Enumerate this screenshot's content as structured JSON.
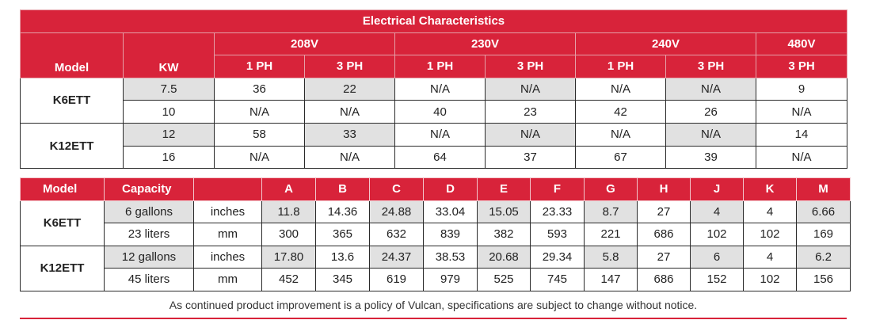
{
  "electrical": {
    "title": "Electrical Characteristics",
    "col_model": "Model",
    "col_kw": "KW",
    "voltages": [
      "208V",
      "230V",
      "240V",
      "480V"
    ],
    "phases": [
      "1 PH",
      "3 PH",
      "1 PH",
      "3 PH",
      "1 PH",
      "3 PH",
      "3 PH"
    ],
    "models": [
      "K6ETT",
      "K12ETT"
    ],
    "rows": [
      [
        "7.5",
        "36",
        "22",
        "N/A",
        "N/A",
        "N/A",
        "N/A",
        "9"
      ],
      [
        "10",
        "N/A",
        "N/A",
        "40",
        "23",
        "42",
        "26",
        "N/A"
      ],
      [
        "12",
        "58",
        "33",
        "N/A",
        "N/A",
        "N/A",
        "N/A",
        "14"
      ],
      [
        "16",
        "N/A",
        "N/A",
        "64",
        "37",
        "67",
        "39",
        "N/A"
      ]
    ]
  },
  "dimensions": {
    "headers": [
      "Model",
      "Capacity",
      "",
      "A",
      "B",
      "C",
      "D",
      "E",
      "F",
      "G",
      "H",
      "J",
      "K",
      "M"
    ],
    "models": [
      "K6ETT",
      "K12ETT"
    ],
    "rows": [
      [
        "6 gallons",
        "inches",
        "11.8",
        "14.36",
        "24.88",
        "33.04",
        "15.05",
        "23.33",
        "8.7",
        "27",
        "4",
        "4",
        "6.66"
      ],
      [
        "23 liters",
        "mm",
        "300",
        "365",
        "632",
        "839",
        "382",
        "593",
        "221",
        "686",
        "102",
        "102",
        "169"
      ],
      [
        "12 gallons",
        "inches",
        "17.80",
        "13.6",
        "24.37",
        "38.53",
        "20.68",
        "29.34",
        "5.8",
        "27",
        "6",
        "4",
        "6.2"
      ],
      [
        "45 liters",
        "mm",
        "452",
        "345",
        "619",
        "979",
        "525",
        "745",
        "147",
        "686",
        "152",
        "102",
        "156"
      ]
    ]
  },
  "footnote": "As continued product improvement is a policy of Vulcan, specifications are subject to change without notice.",
  "colors": {
    "accent": "#d8233a",
    "row_shade": "#e1e1e1"
  }
}
